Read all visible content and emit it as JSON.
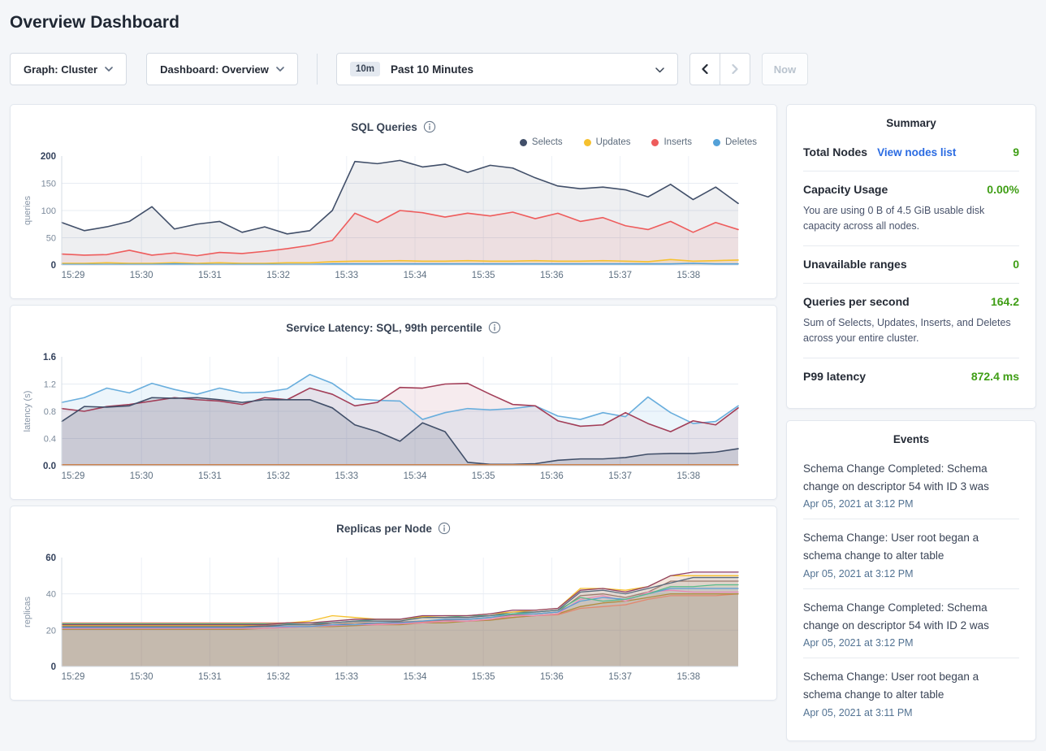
{
  "page": {
    "title": "Overview Dashboard"
  },
  "toolbar": {
    "graph_dropdown": "Graph: Cluster",
    "dashboard_dropdown": "Dashboard: Overview",
    "time_window_badge": "10m",
    "time_window_label": "Past 10 Minutes",
    "now_button": "Now"
  },
  "summary": {
    "title": "Summary",
    "value_color": "#3f9e15",
    "link_color": "#2a6be2",
    "rows": [
      {
        "label": "Total Nodes",
        "link": "View nodes list",
        "value": "9"
      },
      {
        "label": "Capacity Usage",
        "value": "0.00%",
        "description": "You are using 0 B of 4.5 GiB usable disk capacity across all nodes."
      },
      {
        "label": "Unavailable ranges",
        "value": "0"
      },
      {
        "label": "Queries per second",
        "value": "164.2",
        "description": "Sum of Selects, Updates, Inserts, and Deletes across your entire cluster."
      },
      {
        "label": "P99 latency",
        "value": "872.4 ms"
      }
    ]
  },
  "events": {
    "title": "Events",
    "items": [
      {
        "message": "Schema Change Completed: Schema change on descriptor 54 with ID 3 was",
        "timestamp": "Apr 05, 2021 at 3:12 PM"
      },
      {
        "message": "Schema Change: User root began a schema change to alter table",
        "timestamp": "Apr 05, 2021 at 3:12 PM"
      },
      {
        "message": "Schema Change Completed: Schema change on descriptor 54 with ID 2 was",
        "timestamp": "Apr 05, 2021 at 3:12 PM"
      },
      {
        "message": "Schema Change: User root began a schema change to alter table",
        "timestamp": "Apr 05, 2021 at 3:11 PM"
      }
    ]
  },
  "chart_data": [
    {
      "type": "area",
      "title": "SQL Queries",
      "ylabel": "queries",
      "ylim": [
        0,
        200
      ],
      "yticks": [
        0,
        50,
        100,
        150,
        200
      ],
      "ytick_labels": [
        "0",
        "50",
        "100",
        "150",
        "200"
      ],
      "x_labels": [
        "15:29",
        "15:30",
        "15:31",
        "15:32",
        "15:33",
        "15:34",
        "15:35",
        "15:36",
        "15:37",
        "15:38"
      ],
      "grid": true,
      "legend_position": "top-right",
      "series": [
        {
          "name": "Selects",
          "color": "#414f69",
          "fill_opacity": 0.09,
          "values": [
            78,
            63,
            70,
            80,
            107,
            66,
            75,
            80,
            60,
            70,
            57,
            63,
            100,
            190,
            186,
            192,
            180,
            185,
            170,
            183,
            178,
            160,
            145,
            140,
            143,
            138,
            125,
            148,
            120,
            143,
            113
          ]
        },
        {
          "name": "Updates",
          "color": "#f6c12e",
          "fill_opacity": 0.14,
          "values": [
            3,
            3,
            4,
            3,
            3,
            4,
            3,
            4,
            3,
            3,
            4,
            4,
            6,
            7,
            7,
            8,
            7,
            7,
            8,
            7,
            7,
            8,
            7,
            7,
            8,
            7,
            6,
            10,
            7,
            8,
            9
          ]
        },
        {
          "name": "Inserts",
          "color": "#ee5c5c",
          "fill_opacity": 0.1,
          "values": [
            20,
            18,
            19,
            27,
            18,
            22,
            17,
            23,
            21,
            25,
            30,
            36,
            45,
            95,
            78,
            100,
            96,
            88,
            95,
            90,
            97,
            85,
            95,
            80,
            87,
            72,
            65,
            80,
            60,
            78,
            65
          ]
        },
        {
          "name": "Deletes",
          "color": "#54a1d8",
          "fill_opacity": 0.12,
          "values": [
            1,
            1,
            1,
            1,
            1,
            2,
            1,
            1,
            1,
            1,
            1,
            1,
            2,
            2,
            2,
            2,
            2,
            2,
            2,
            2,
            2,
            2,
            2,
            2,
            2,
            2,
            2,
            2,
            3,
            2,
            2
          ]
        }
      ]
    },
    {
      "type": "area",
      "title": "Service Latency: SQL, 99th percentile",
      "ylabel": "latency (s)",
      "ylim": [
        0,
        1.6
      ],
      "yticks": [
        0,
        0.4,
        0.8,
        1.2,
        1.6
      ],
      "ytick_labels": [
        "0.0",
        "0.4",
        "0.8",
        "1.2",
        "1.6"
      ],
      "x_labels": [
        "15:29",
        "15:30",
        "15:31",
        "15:32",
        "15:33",
        "15:34",
        "15:35",
        "15:36",
        "15:37",
        "15:38"
      ],
      "grid": true,
      "legend_position": "none",
      "series": [
        {
          "name": "series-1",
          "color": "#69aedd",
          "fill_opacity": 0.13,
          "values": [
            0.93,
            1.0,
            1.14,
            1.07,
            1.21,
            1.12,
            1.05,
            1.14,
            1.07,
            1.08,
            1.13,
            1.34,
            1.21,
            0.98,
            0.96,
            0.95,
            0.68,
            0.78,
            0.84,
            0.82,
            0.84,
            0.88,
            0.73,
            0.68,
            0.78,
            0.72,
            1.01,
            0.78,
            0.62,
            0.65,
            0.88
          ]
        },
        {
          "name": "series-2",
          "color": "#a23e58",
          "fill_opacity": 0.1,
          "values": [
            0.84,
            0.8,
            0.87,
            0.9,
            0.95,
            1.0,
            0.97,
            0.95,
            0.9,
            1.0,
            0.97,
            1.14,
            1.05,
            0.88,
            0.93,
            1.15,
            1.14,
            1.2,
            1.21,
            1.05,
            0.9,
            0.88,
            0.66,
            0.58,
            0.6,
            0.78,
            0.62,
            0.5,
            0.66,
            0.6,
            0.85
          ]
        },
        {
          "name": "series-3",
          "color": "#414f69",
          "fill_opacity": 0.16,
          "values": [
            0.65,
            0.87,
            0.86,
            0.88,
            1.0,
            0.99,
            1.0,
            0.97,
            0.93,
            0.97,
            0.97,
            0.97,
            0.85,
            0.6,
            0.5,
            0.36,
            0.63,
            0.5,
            0.05,
            0.02,
            0.02,
            0.03,
            0.08,
            0.1,
            0.1,
            0.12,
            0.17,
            0.18,
            0.18,
            0.2,
            0.25
          ]
        },
        {
          "name": "series-4",
          "color": "#c8824f",
          "fill_opacity": 0,
          "values": [
            0.015,
            0.015,
            0.015,
            0.015,
            0.015,
            0.015,
            0.015,
            0.015,
            0.015,
            0.015,
            0.015,
            0.015,
            0.015,
            0.015,
            0.015,
            0.015,
            0.015,
            0.015,
            0.015,
            0.015,
            0.015,
            0.015,
            0.015,
            0.015,
            0.015,
            0.015,
            0.015,
            0.015,
            0.015,
            0.015,
            0.015
          ]
        }
      ]
    },
    {
      "type": "area",
      "title": "Replicas per Node",
      "ylabel": "replicas",
      "ylim": [
        0,
        60
      ],
      "yticks": [
        0,
        20,
        40,
        60
      ],
      "ytick_labels": [
        "0",
        "20",
        "40",
        "60"
      ],
      "x_labels": [
        "15:29",
        "15:30",
        "15:31",
        "15:32",
        "15:33",
        "15:34",
        "15:35",
        "15:36",
        "15:37",
        "15:38"
      ],
      "grid": true,
      "legend_position": "none",
      "series": [
        {
          "name": "series-1",
          "color": "#9c7a6e",
          "fill_opacity": 0.09,
          "values": [
            22,
            22,
            22,
            22,
            22,
            22,
            22,
            22,
            22,
            22.5,
            23,
            23,
            23,
            24,
            24,
            24.5,
            25,
            25.5,
            26,
            27,
            28.5,
            29,
            30,
            39,
            40,
            38,
            41,
            47,
            47,
            47,
            47
          ]
        },
        {
          "name": "series-2",
          "color": "#e2886f",
          "fill_opacity": 0.09,
          "values": [
            24,
            24,
            24,
            24,
            24,
            24,
            24,
            24,
            24,
            24,
            24,
            24,
            23,
            23,
            23.5,
            24,
            24.5,
            25,
            25,
            26,
            27,
            28,
            28.5,
            32,
            33,
            34,
            37,
            39,
            39,
            39,
            40
          ]
        },
        {
          "name": "series-3",
          "color": "#b08c3e",
          "fill_opacity": 0.09,
          "values": [
            20.5,
            20.5,
            20.5,
            20.5,
            20.5,
            20.5,
            20.5,
            20.5,
            20.5,
            21,
            21.5,
            22,
            22,
            22.5,
            23,
            23,
            24,
            24,
            25,
            25.5,
            27,
            28,
            29,
            33,
            35,
            36,
            38,
            40,
            40,
            40,
            40
          ]
        },
        {
          "name": "series-4",
          "color": "#e98ab6",
          "fill_opacity": 0.09,
          "values": [
            21,
            21,
            21,
            21,
            21,
            21,
            21,
            21,
            21,
            21,
            21.5,
            22,
            22.5,
            23,
            23,
            23.5,
            24,
            25,
            25,
            26,
            28,
            28,
            29,
            37,
            39,
            36,
            41,
            42,
            41,
            41,
            41
          ]
        },
        {
          "name": "series-5",
          "color": "#5a9bd5",
          "fill_opacity": 0.09,
          "values": [
            21.5,
            21.5,
            21.5,
            21.5,
            21.5,
            21.5,
            21.5,
            21.5,
            21.5,
            22,
            22,
            22,
            23,
            23,
            24,
            24,
            25,
            26,
            26,
            27,
            29,
            29,
            30,
            36,
            38,
            37,
            40,
            43,
            43,
            43,
            43
          ]
        },
        {
          "name": "series-6",
          "color": "#57bb8a",
          "fill_opacity": 0.09,
          "values": [
            23.5,
            23.5,
            23.5,
            23.5,
            23.5,
            23.5,
            23.5,
            23.5,
            23.5,
            23.5,
            23.5,
            24,
            24,
            25,
            26,
            26,
            27,
            27,
            28,
            28,
            29,
            30,
            31,
            38,
            36,
            37,
            40,
            44,
            44,
            45,
            45
          ]
        },
        {
          "name": "series-7",
          "color": "#5a6b7e",
          "fill_opacity": 0.09,
          "values": [
            22,
            22,
            22,
            22,
            22,
            22,
            22,
            22,
            22,
            22,
            23,
            23,
            24,
            25,
            25,
            25,
            27,
            27,
            27,
            28,
            30,
            30,
            31,
            41,
            42,
            40,
            43,
            46,
            49,
            49,
            49
          ]
        },
        {
          "name": "series-8",
          "color": "#f6c12e",
          "fill_opacity": 0.09,
          "values": [
            22.5,
            22.5,
            22.5,
            22.5,
            22.5,
            22.5,
            22.5,
            22.5,
            22.5,
            23,
            24,
            25,
            28,
            27,
            26,
            26,
            27.5,
            28,
            28,
            29,
            30,
            31,
            32,
            43,
            43,
            42,
            44,
            50,
            50,
            50,
            50
          ]
        },
        {
          "name": "series-9",
          "color": "#8f3f68",
          "fill_opacity": 0.09,
          "values": [
            23,
            23,
            23,
            23,
            23,
            23,
            23,
            23,
            23,
            23,
            24,
            24,
            25,
            26,
            26,
            26,
            28,
            28,
            28,
            29,
            31,
            31,
            32,
            42,
            43,
            41,
            44,
            50,
            52,
            52,
            52
          ]
        }
      ]
    }
  ]
}
